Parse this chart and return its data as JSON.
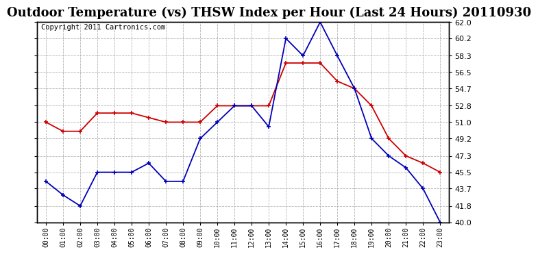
{
  "title": "Outdoor Temperature (vs) THSW Index per Hour (Last 24 Hours) 20110930",
  "copyright": "Copyright 2011 Cartronics.com",
  "hours": [
    "00:00",
    "01:00",
    "02:00",
    "03:00",
    "04:00",
    "05:00",
    "06:00",
    "07:00",
    "08:00",
    "09:00",
    "10:00",
    "11:00",
    "12:00",
    "13:00",
    "14:00",
    "15:00",
    "16:00",
    "17:00",
    "18:00",
    "19:00",
    "20:00",
    "21:00",
    "22:00",
    "23:00"
  ],
  "temp": [
    44.5,
    43.0,
    41.8,
    45.5,
    45.5,
    45.5,
    46.5,
    44.5,
    44.5,
    49.2,
    51.0,
    52.8,
    52.8,
    50.5,
    60.2,
    58.3,
    62.0,
    58.3,
    54.7,
    49.2,
    47.3,
    46.0,
    43.7,
    40.0
  ],
  "thsw": [
    51.0,
    50.0,
    50.0,
    52.0,
    52.0,
    52.0,
    51.5,
    51.0,
    51.0,
    51.0,
    52.8,
    52.8,
    52.8,
    52.8,
    57.5,
    57.5,
    57.5,
    55.5,
    54.7,
    52.8,
    49.2,
    47.3,
    46.5,
    45.5
  ],
  "temp_color": "#0000bb",
  "thsw_color": "#cc0000",
  "ylim_min": 40.0,
  "ylim_max": 62.0,
  "yticks": [
    40.0,
    41.8,
    43.7,
    45.5,
    47.3,
    49.2,
    51.0,
    52.8,
    54.7,
    56.5,
    58.3,
    60.2,
    62.0
  ],
  "bg_color": "#ffffff",
  "grid_color": "#aaaaaa",
  "title_fontsize": 13,
  "copyright_fontsize": 7.5
}
